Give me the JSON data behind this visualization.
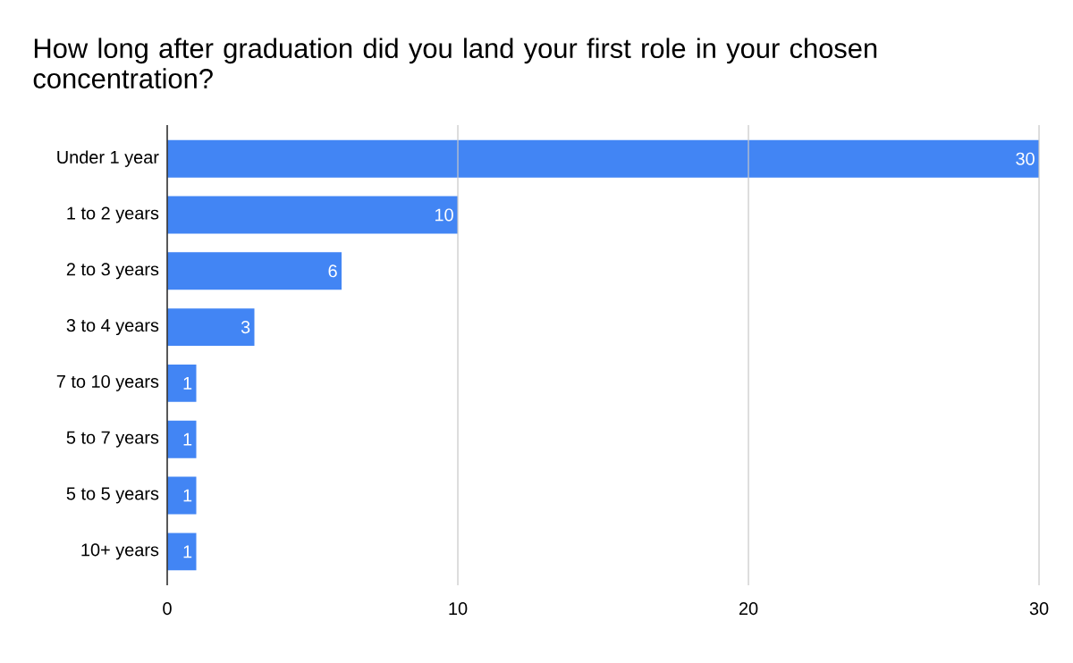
{
  "chart_data": {
    "type": "bar",
    "orientation": "horizontal",
    "title": "How long after graduation did you land your first role in your chosen concentration?",
    "categories": [
      "Under 1 year",
      "1 to 2 years",
      "2 to 3 years",
      "3 to 4 years",
      "7 to 10 years",
      "5 to 7 years",
      "5 to 5 years",
      "10+ years"
    ],
    "values": [
      30,
      10,
      6,
      3,
      1,
      1,
      1,
      1
    ],
    "color": "#4285f4",
    "xlim": [
      0,
      30
    ],
    "xticks": [
      0,
      10,
      20,
      30
    ],
    "grid": "x",
    "data_labels": true
  }
}
